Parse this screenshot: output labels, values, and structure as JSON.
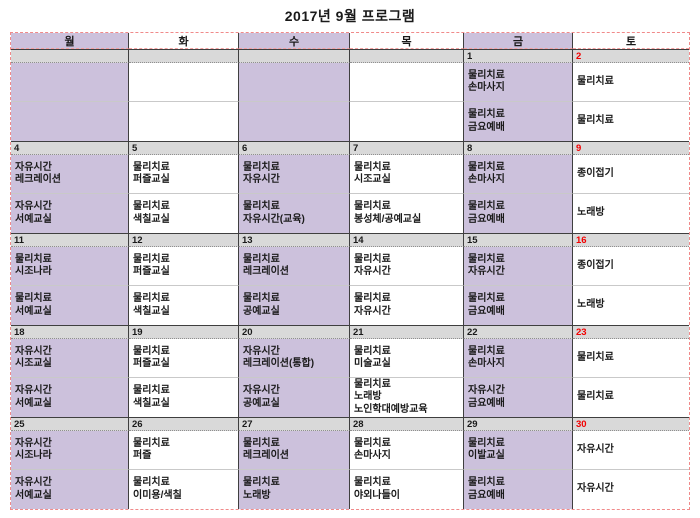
{
  "title": "2017년 9월 프로그램",
  "colors": {
    "lavender": "#ccc1dc",
    "date_row_gray": "#d9d9d9",
    "saturday_red": "#f20000",
    "grid_line": "#3f3f3f",
    "print_border_red": "#f08a8a"
  },
  "weekday_headers": [
    {
      "label": "월",
      "tone": "purple"
    },
    {
      "label": "화",
      "tone": "white"
    },
    {
      "label": "수",
      "tone": "purple"
    },
    {
      "label": "목",
      "tone": "white"
    },
    {
      "label": "금",
      "tone": "purple"
    },
    {
      "label": "토",
      "tone": "white"
    }
  ],
  "weeks": [
    {
      "dates": [
        {
          "day": "",
          "red": false
        },
        {
          "day": "",
          "red": false
        },
        {
          "day": "",
          "red": false
        },
        {
          "day": "",
          "red": false
        },
        {
          "day": "1",
          "red": false
        },
        {
          "day": "2",
          "red": true
        }
      ],
      "rows": [
        {
          "cells": [
            [],
            [],
            [],
            [],
            [
              "물리치료",
              "손마사지"
            ],
            [
              "물리치료"
            ]
          ]
        },
        {
          "cells": [
            [],
            [],
            [],
            [],
            [
              "물리치료",
              "금요예배"
            ],
            [
              "물리치료"
            ]
          ]
        }
      ]
    },
    {
      "dates": [
        {
          "day": "4",
          "red": false
        },
        {
          "day": "5",
          "red": false
        },
        {
          "day": "6",
          "red": false
        },
        {
          "day": "7",
          "red": false
        },
        {
          "day": "8",
          "red": false
        },
        {
          "day": "9",
          "red": true
        }
      ],
      "rows": [
        {
          "cells": [
            [
              "자유시간",
              "레크레이션"
            ],
            [
              "물리치료",
              "퍼즐교실"
            ],
            [
              "물리치료",
              "자유시간"
            ],
            [
              "물리치료",
              "시조교실"
            ],
            [
              "물리치료",
              "손마사지"
            ],
            [
              "종이접기"
            ]
          ]
        },
        {
          "cells": [
            [
              "자유시간",
              "서예교실"
            ],
            [
              "물리치료",
              "색칠교실"
            ],
            [
              "물리치료",
              "자유시간(교육)"
            ],
            [
              "물리치료",
              "봉성체/공예교실"
            ],
            [
              "물리치료",
              "금요예배"
            ],
            [
              "노래방"
            ]
          ]
        }
      ]
    },
    {
      "dates": [
        {
          "day": "11",
          "red": false
        },
        {
          "day": "12",
          "red": false
        },
        {
          "day": "13",
          "red": false
        },
        {
          "day": "14",
          "red": false
        },
        {
          "day": "15",
          "red": false
        },
        {
          "day": "16",
          "red": true
        }
      ],
      "rows": [
        {
          "cells": [
            [
              "물리치료",
              "시조나라"
            ],
            [
              "물리치료",
              "퍼즐교실"
            ],
            [
              "물리치료",
              "레크레이션"
            ],
            [
              "물리치료",
              "자유시간"
            ],
            [
              "물리치료",
              "자유시간"
            ],
            [
              "종이접기"
            ]
          ]
        },
        {
          "cells": [
            [
              "물리치료",
              "서예교실"
            ],
            [
              "물리치료",
              "색칠교실"
            ],
            [
              "물리치료",
              "공예교실"
            ],
            [
              "물리치료",
              "자유시간"
            ],
            [
              "물리치료",
              "금요예배"
            ],
            [
              "노래방"
            ]
          ]
        }
      ]
    },
    {
      "dates": [
        {
          "day": "18",
          "red": false
        },
        {
          "day": "19",
          "red": false
        },
        {
          "day": "20",
          "red": false
        },
        {
          "day": "21",
          "red": false
        },
        {
          "day": "22",
          "red": false
        },
        {
          "day": "23",
          "red": true
        }
      ],
      "rows": [
        {
          "cells": [
            [
              "자유시간",
              "시조교실"
            ],
            [
              "물리치료",
              "퍼즐교실"
            ],
            [
              "자유시간",
              "레크레이션(통합)"
            ],
            [
              "물리치료",
              "미술교실"
            ],
            [
              "물리치료",
              "손마사지"
            ],
            [
              "물리치료"
            ]
          ]
        },
        {
          "cells": [
            [
              "자유시간",
              "서예교실"
            ],
            [
              "물리치료",
              "색칠교실"
            ],
            [
              "자유시간",
              "공예교실"
            ],
            [
              "물리치료",
              "노래방",
              "노인학대예방교육"
            ],
            [
              "자유시간",
              "금요예배"
            ],
            [
              "물리치료"
            ]
          ]
        }
      ]
    },
    {
      "dates": [
        {
          "day": "25",
          "red": false
        },
        {
          "day": "26",
          "red": false
        },
        {
          "day": "27",
          "red": false
        },
        {
          "day": "28",
          "red": false
        },
        {
          "day": "29",
          "red": false
        },
        {
          "day": "30",
          "red": true
        }
      ],
      "rows": [
        {
          "cells": [
            [
              "자유시간",
              "시조나라"
            ],
            [
              "물리치료",
              "퍼즐"
            ],
            [
              "물리치료",
              "레크레이션"
            ],
            [
              "물리치료",
              "손마사지"
            ],
            [
              "물리치료",
              "이발교실"
            ],
            [
              "자유시간"
            ]
          ]
        },
        {
          "cells": [
            [
              "자유시간",
              "서예교실"
            ],
            [
              "물리치료",
              "이미용/색칠"
            ],
            [
              "물리치료",
              "노래방"
            ],
            [
              "물리치료",
              "야외나들이"
            ],
            [
              "물리치료",
              "금요예배"
            ],
            [
              "자유시간"
            ]
          ]
        }
      ]
    }
  ]
}
